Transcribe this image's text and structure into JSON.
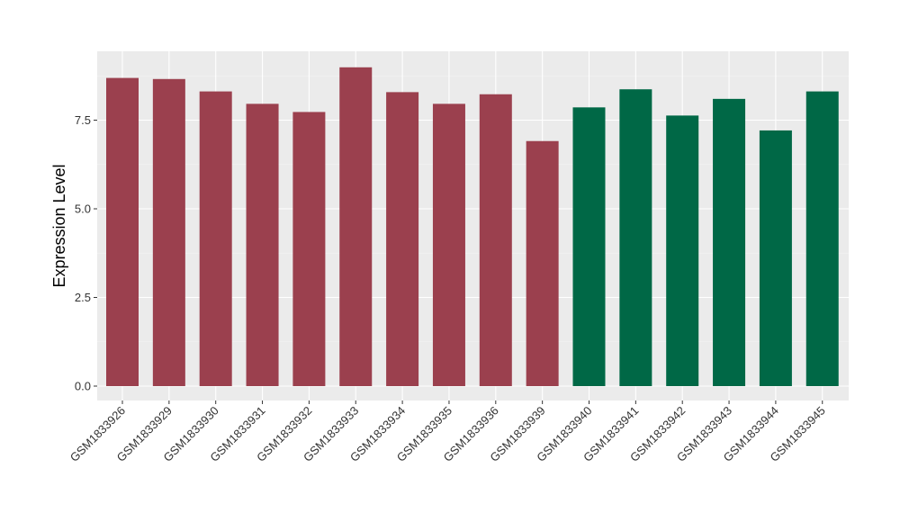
{
  "chart_data": {
    "type": "bar",
    "title": "",
    "xlabel": "",
    "ylabel": "Expression Level",
    "ylim": [
      0,
      9.45
    ],
    "yticks": [
      0.0,
      2.5,
      5.0,
      7.5
    ],
    "ytick_labels": [
      "0.0",
      "2.5",
      "5.0",
      "7.5"
    ],
    "grid": true,
    "legend": "none",
    "categories": [
      "GSM1833926",
      "GSM1833929",
      "GSM1833930",
      "GSM1833931",
      "GSM1833932",
      "GSM1833933",
      "GSM1833934",
      "GSM1833935",
      "GSM1833936",
      "GSM1833939",
      "GSM1833940",
      "GSM1833941",
      "GSM1833942",
      "GSM1833943",
      "GSM1833944",
      "GSM1833945"
    ],
    "values": [
      8.69,
      8.66,
      8.31,
      7.96,
      7.73,
      8.99,
      8.29,
      7.96,
      8.23,
      6.91,
      7.86,
      8.37,
      7.63,
      8.1,
      7.21,
      8.31
    ],
    "bar_colors": [
      "#9B404E",
      "#9B404E",
      "#9B404E",
      "#9B404E",
      "#9B404E",
      "#9B404E",
      "#9B404E",
      "#9B404E",
      "#9B404E",
      "#9B404E",
      "#006846",
      "#006846",
      "#006846",
      "#006846",
      "#006846",
      "#006846"
    ]
  },
  "colors": {
    "panel_background": "#EBEBEB",
    "grid_major": "#FFFFFF",
    "grid_minor": "#F5F5F5",
    "group_a": "#9B404E",
    "group_b": "#006846"
  }
}
